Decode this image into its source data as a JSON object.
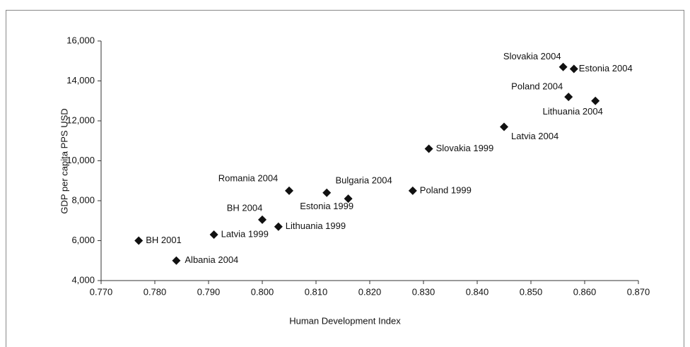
{
  "chart_data": {
    "type": "scatter",
    "x_label": "Human Development Index",
    "y_label": "GDP per capita PPS USD",
    "color": "#111111",
    "grid": false,
    "labels": [
      "BH 2001",
      "Albania 2004",
      "Latvia 1999",
      "BH 2004",
      "Lithuania 1999",
      "Romania 2004",
      "Estonia 1999",
      "Bulgaria 2004",
      "Poland 1999",
      "Slovakia 1999",
      "Latvia 2004",
      "Poland 2004",
      "Lithuania 2004",
      "Slovakia 2004",
      "Estonia 2004"
    ],
    "x": [
      0.777,
      0.784,
      0.791,
      0.8,
      0.803,
      0.805,
      0.812,
      0.816,
      0.828,
      0.831,
      0.845,
      0.857,
      0.862,
      0.856,
      0.858
    ],
    "values": [
      6000,
      5000,
      6300,
      7050,
      6700,
      8500,
      8400,
      8100,
      8500,
      10600,
      11700,
      13200,
      13000,
      14700,
      14600
    ],
    "xlim": [
      0.77,
      0.87
    ],
    "xticks": [
      {
        "value": 0.77,
        "label": "0.770"
      },
      {
        "value": 0.78,
        "label": "0.780"
      },
      {
        "value": 0.79,
        "label": "0.790"
      },
      {
        "value": 0.8,
        "label": "0.800"
      },
      {
        "value": 0.81,
        "label": "0.810"
      },
      {
        "value": 0.82,
        "label": "0.820"
      },
      {
        "value": 0.83,
        "label": "0.830"
      },
      {
        "value": 0.84,
        "label": "0.840"
      },
      {
        "value": 0.85,
        "label": "0.850"
      },
      {
        "value": 0.86,
        "label": "0.860"
      },
      {
        "value": 0.87,
        "label": "0.870"
      }
    ],
    "ylim": [
      4000,
      16000
    ],
    "yticks": [
      {
        "value": 4000,
        "label": "4,000"
      },
      {
        "value": 6000,
        "label": "6,000"
      },
      {
        "value": 8000,
        "label": "8,000"
      },
      {
        "value": 10000,
        "label": "10,000"
      },
      {
        "value": 12000,
        "label": "12,000"
      },
      {
        "value": 14000,
        "label": "14,000"
      },
      {
        "value": 16000,
        "label": "16,000"
      }
    ]
  }
}
